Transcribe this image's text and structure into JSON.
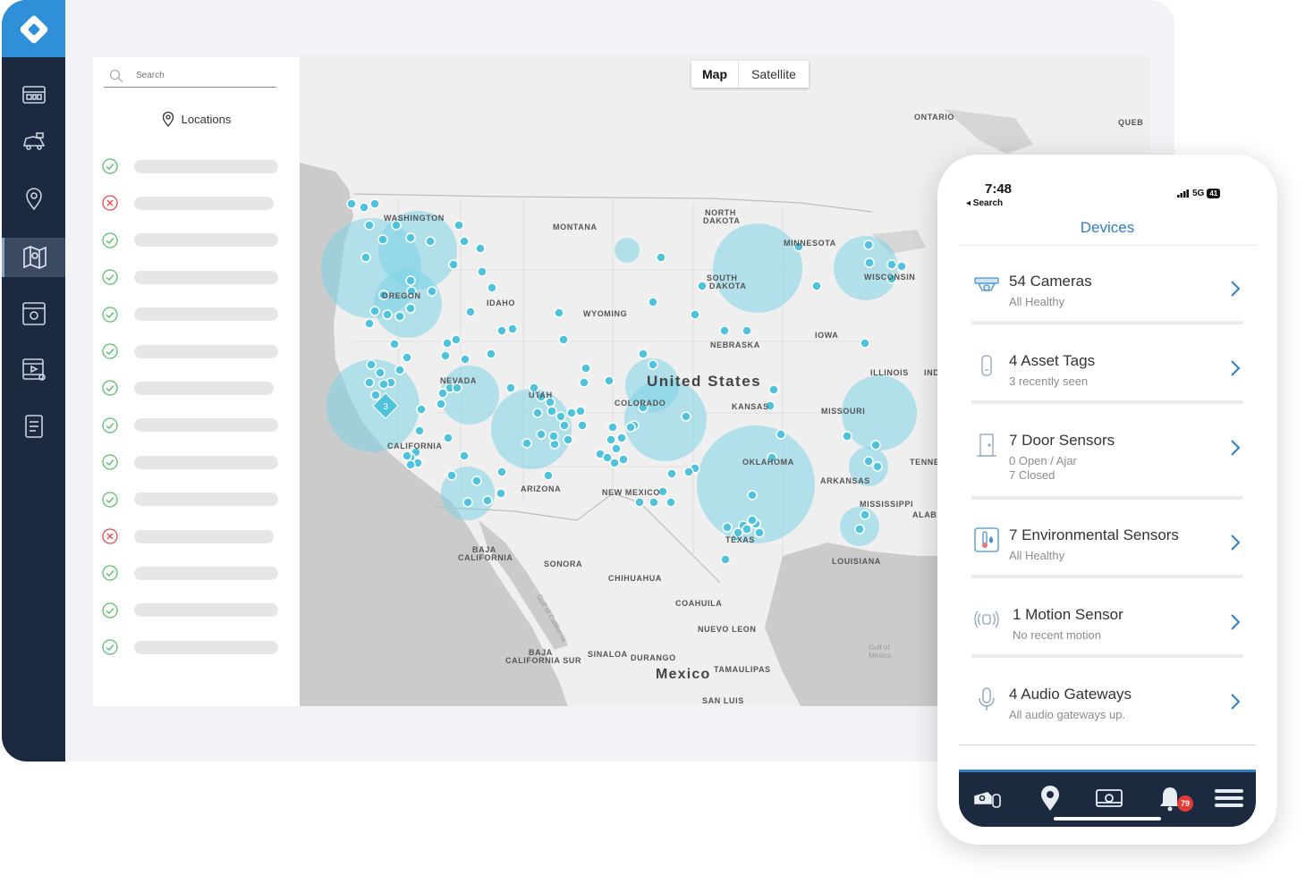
{
  "sidebar": {
    "items": [
      {
        "icon": "dashboard-icon"
      },
      {
        "icon": "vehicle-icon"
      },
      {
        "icon": "location-pin-icon"
      },
      {
        "icon": "map-icon",
        "active": true
      },
      {
        "icon": "camera-view-icon"
      },
      {
        "icon": "video-archive-icon"
      },
      {
        "icon": "report-icon"
      }
    ],
    "colors": {
      "bg": "#1b2a41",
      "logo": "#2f8fd8"
    }
  },
  "locations_panel": {
    "search_placeholder": "Search",
    "title": "Locations",
    "rows": [
      {
        "status": "ok"
      },
      {
        "status": "error"
      },
      {
        "status": "ok"
      },
      {
        "status": "ok"
      },
      {
        "status": "ok"
      },
      {
        "status": "ok"
      },
      {
        "status": "ok"
      },
      {
        "status": "ok"
      },
      {
        "status": "ok"
      },
      {
        "status": "ok"
      },
      {
        "status": "error"
      },
      {
        "status": "ok"
      },
      {
        "status": "ok"
      },
      {
        "status": "ok"
      }
    ]
  },
  "map": {
    "toggle": {
      "map_label": "Map",
      "satellite_label": "Satellite",
      "selected": "Map"
    },
    "labels": {
      "ontario": "ONTARIO",
      "quebec": "QUEB",
      "washington": "WASHINGTON",
      "montana": "MONTANA",
      "north_dakota_1": "NORTH",
      "north_dakota_2": "DAKOTA",
      "minnesota": "MINNESOTA",
      "south_dakota_1": "SOUTH",
      "south_dakota_2": "DAKOTA",
      "wisconsin": "WISCONSIN",
      "idaho": "IDAHO",
      "oregon": "OREGON",
      "wyoming": "WYOMING",
      "iowa": "IOWA",
      "nebraska": "NEBRASKA",
      "united_states": "United States",
      "illinois": "ILLINOIS",
      "indiana": "IND",
      "nevada": "NEVADA",
      "utah": "UTAH",
      "colorado": "COLORADO",
      "kansas": "KANSAS",
      "missouri": "MISSOURI",
      "california": "CALIFORNIA",
      "tennessee": "TENNE",
      "oklahoma": "OKLAHOMA",
      "arizona": "ARIZONA",
      "new_mexico": "NEW MEXICO",
      "arkansas": "ARKANSAS",
      "mississippi": "MISSISSIPPI",
      "alabama": "ALABA",
      "texas": "TEXAS",
      "baja_california_1": "BAJA",
      "baja_california_2": "CALIFORNIA",
      "sonora": "SONORA",
      "louisiana": "LOUISIANA",
      "chihuahua": "CHIHUAHUA",
      "coahuila": "COAHUILA",
      "nuevo_leon": "NUEVO LEON",
      "gulf_of_california": "Gulf of California",
      "baja_sur_1": "BAJA",
      "baja_sur_2": "CALIFORNIA SUR",
      "sinaloa": "SINALOA",
      "durango": "DURANGO",
      "mexico": "Mexico",
      "tamaulipas": "TAMAULIPAS",
      "san_luis": "SAN LUIS",
      "gulf_of_mexico_1": "Gulf of",
      "gulf_of_mexico_2": "Mexico"
    },
    "cluster_count": "3",
    "colors": {
      "marker": "#4fc3dc",
      "heat": "#7dd3e6",
      "land": "#efefef",
      "water": "#c9c9c9"
    }
  },
  "phone": {
    "time": "7:48",
    "back_label": "◂ Search",
    "network": "5G",
    "battery": "41",
    "title": "Devices",
    "devices": [
      {
        "icon": "camera-icon",
        "title": "54 Cameras",
        "sub": [
          "All Healthy"
        ]
      },
      {
        "icon": "asset-tag-icon",
        "title": "4 Asset Tags",
        "sub": [
          "3 recently seen"
        ]
      },
      {
        "icon": "door-sensor-icon",
        "title": "7 Door Sensors",
        "sub": [
          "0 Open / Ajar",
          "7 Closed"
        ]
      },
      {
        "icon": "environmental-sensor-icon",
        "title": "7 Environmental Sensors",
        "sub": [
          "All Healthy"
        ]
      },
      {
        "icon": "motion-sensor-icon",
        "title": "1 Motion Sensor",
        "sub": [
          "No recent motion"
        ]
      },
      {
        "icon": "microphone-icon",
        "title": "4 Audio Gateways",
        "sub": [
          "All audio gateways up."
        ]
      }
    ],
    "tabbar": {
      "tabs": [
        "devices-tab",
        "locations-tab",
        "cameras-tab",
        "alerts-tab",
        "menu-tab"
      ],
      "alert_badge": "79"
    },
    "colors": {
      "accent": "#2f7ec6",
      "tabbar": "#1c2a40",
      "badge": "#e53935"
    }
  }
}
